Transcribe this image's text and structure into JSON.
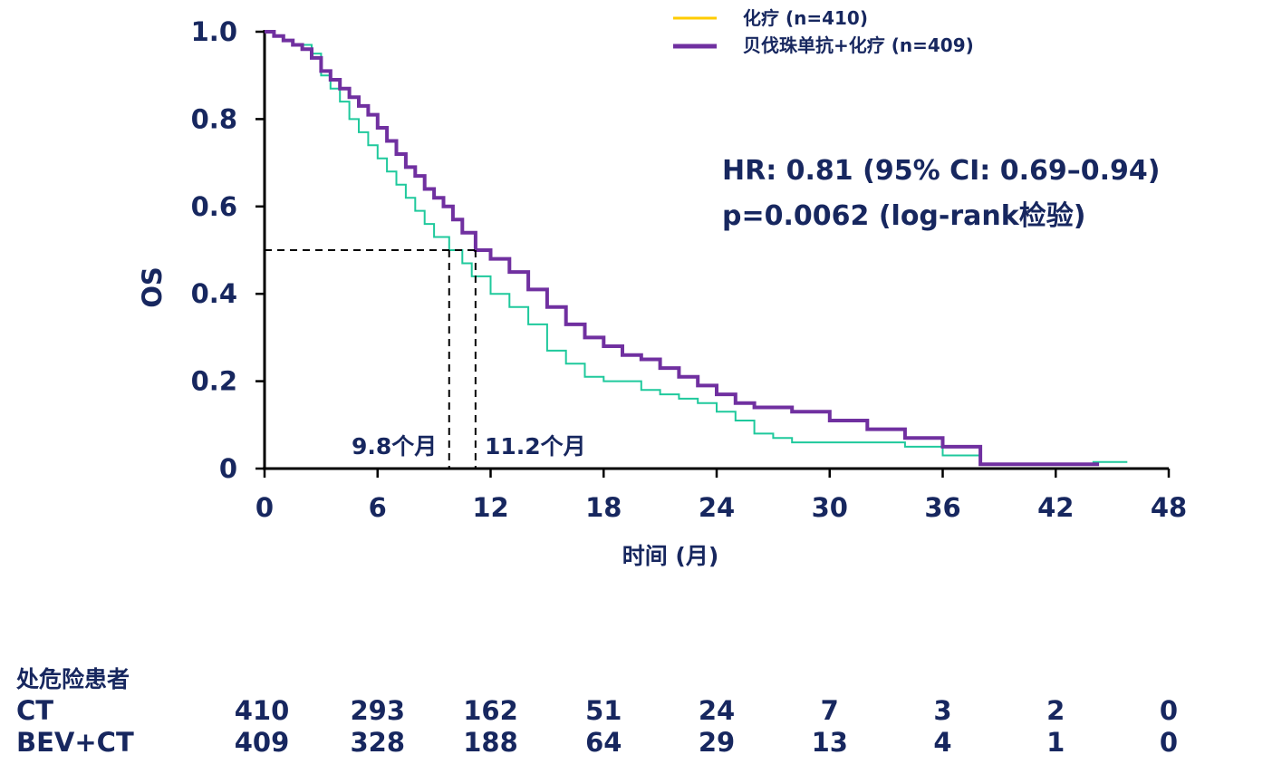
{
  "chart_data": {
    "type": "line",
    "title": "",
    "xlabel": "时间 (月)",
    "ylabel": "OS",
    "xlim": [
      0,
      48
    ],
    "ylim": [
      0,
      1
    ],
    "x_ticks": [
      0,
      6,
      12,
      18,
      24,
      30,
      36,
      42,
      48
    ],
    "x_tick_labels": [
      "0",
      "6",
      "12",
      "18",
      "24",
      "30",
      "36",
      "42",
      "48"
    ],
    "y_ticks": [
      0,
      0.2,
      0.4,
      0.6,
      0.8,
      1.0
    ],
    "y_tick_labels": [
      "0",
      "0.2",
      "0.4",
      "0.6",
      "0.8",
      "1.0"
    ],
    "grid": false,
    "legend_position": "top-right",
    "legend": [
      {
        "label": "化疗 (n=410)",
        "swatch_color": "#ffcc00"
      },
      {
        "label": "贝伐珠单抗+化疗 (n=409)",
        "swatch_color": "#7030a0"
      }
    ],
    "series": [
      {
        "color": "#1fc99c",
        "width": 2,
        "x": [
          0,
          0.5,
          1,
          1.5,
          2,
          2.5,
          3,
          3.5,
          4,
          4.5,
          5,
          5.5,
          6,
          6.5,
          7,
          7.5,
          8,
          8.5,
          9,
          9.8,
          10.5,
          11,
          12,
          13,
          14,
          15,
          16,
          17,
          18,
          19,
          20,
          21,
          22,
          23,
          24,
          25,
          26,
          27,
          28,
          30,
          32,
          34,
          36,
          38,
          40,
          42,
          44,
          45.8
        ],
        "y": [
          1.0,
          0.99,
          0.98,
          0.97,
          0.97,
          0.95,
          0.9,
          0.87,
          0.84,
          0.8,
          0.77,
          0.74,
          0.71,
          0.68,
          0.65,
          0.62,
          0.59,
          0.56,
          0.53,
          0.5,
          0.47,
          0.44,
          0.4,
          0.37,
          0.33,
          0.27,
          0.24,
          0.21,
          0.2,
          0.2,
          0.18,
          0.17,
          0.16,
          0.15,
          0.13,
          0.11,
          0.08,
          0.07,
          0.06,
          0.06,
          0.06,
          0.05,
          0.03,
          0.01,
          0.01,
          0.01,
          0.015,
          0.015
        ]
      },
      {
        "color": "#7030a0",
        "width": 4,
        "x": [
          0,
          0.5,
          1,
          1.5,
          2,
          2.5,
          3,
          3.5,
          4,
          4.5,
          5,
          5.5,
          6,
          6.5,
          7,
          7.5,
          8,
          8.5,
          9,
          9.5,
          10,
          10.5,
          11.2,
          12,
          13,
          14,
          15,
          16,
          17,
          18,
          19,
          20,
          21,
          22,
          23,
          24,
          25,
          26,
          28,
          30,
          32,
          34,
          36,
          37.5,
          38,
          40,
          42,
          44.3
        ],
        "y": [
          1.0,
          0.99,
          0.98,
          0.97,
          0.96,
          0.94,
          0.91,
          0.89,
          0.87,
          0.85,
          0.83,
          0.81,
          0.78,
          0.75,
          0.72,
          0.69,
          0.67,
          0.64,
          0.62,
          0.6,
          0.57,
          0.54,
          0.5,
          0.48,
          0.45,
          0.41,
          0.37,
          0.33,
          0.3,
          0.28,
          0.26,
          0.25,
          0.23,
          0.21,
          0.19,
          0.17,
          0.15,
          0.14,
          0.13,
          0.11,
          0.09,
          0.07,
          0.05,
          0.05,
          0.01,
          0.01,
          0.01,
          0.01
        ]
      }
    ],
    "medians": [
      {
        "x": 9.8,
        "y": 0.5,
        "label": "9.8个月"
      },
      {
        "x": 11.2,
        "y": 0.5,
        "label": "11.2个月"
      }
    ],
    "annotations": [
      "HR: 0.81 (95% CI: 0.69–0.94)",
      "p=0.0062 (log-rank检验)"
    ]
  },
  "risk_table": {
    "header": "处危险患者",
    "time_points": [
      0,
      6,
      12,
      18,
      24,
      30,
      36,
      42,
      48
    ],
    "rows": [
      {
        "label": "CT",
        "values": [
          "410",
          "293",
          "162",
          "51",
          "24",
          "7",
          "3",
          "2",
          "0"
        ]
      },
      {
        "label": "BEV+CT",
        "values": [
          "409",
          "328",
          "188",
          "64",
          "29",
          "13",
          "4",
          "1",
          "0"
        ]
      }
    ]
  }
}
